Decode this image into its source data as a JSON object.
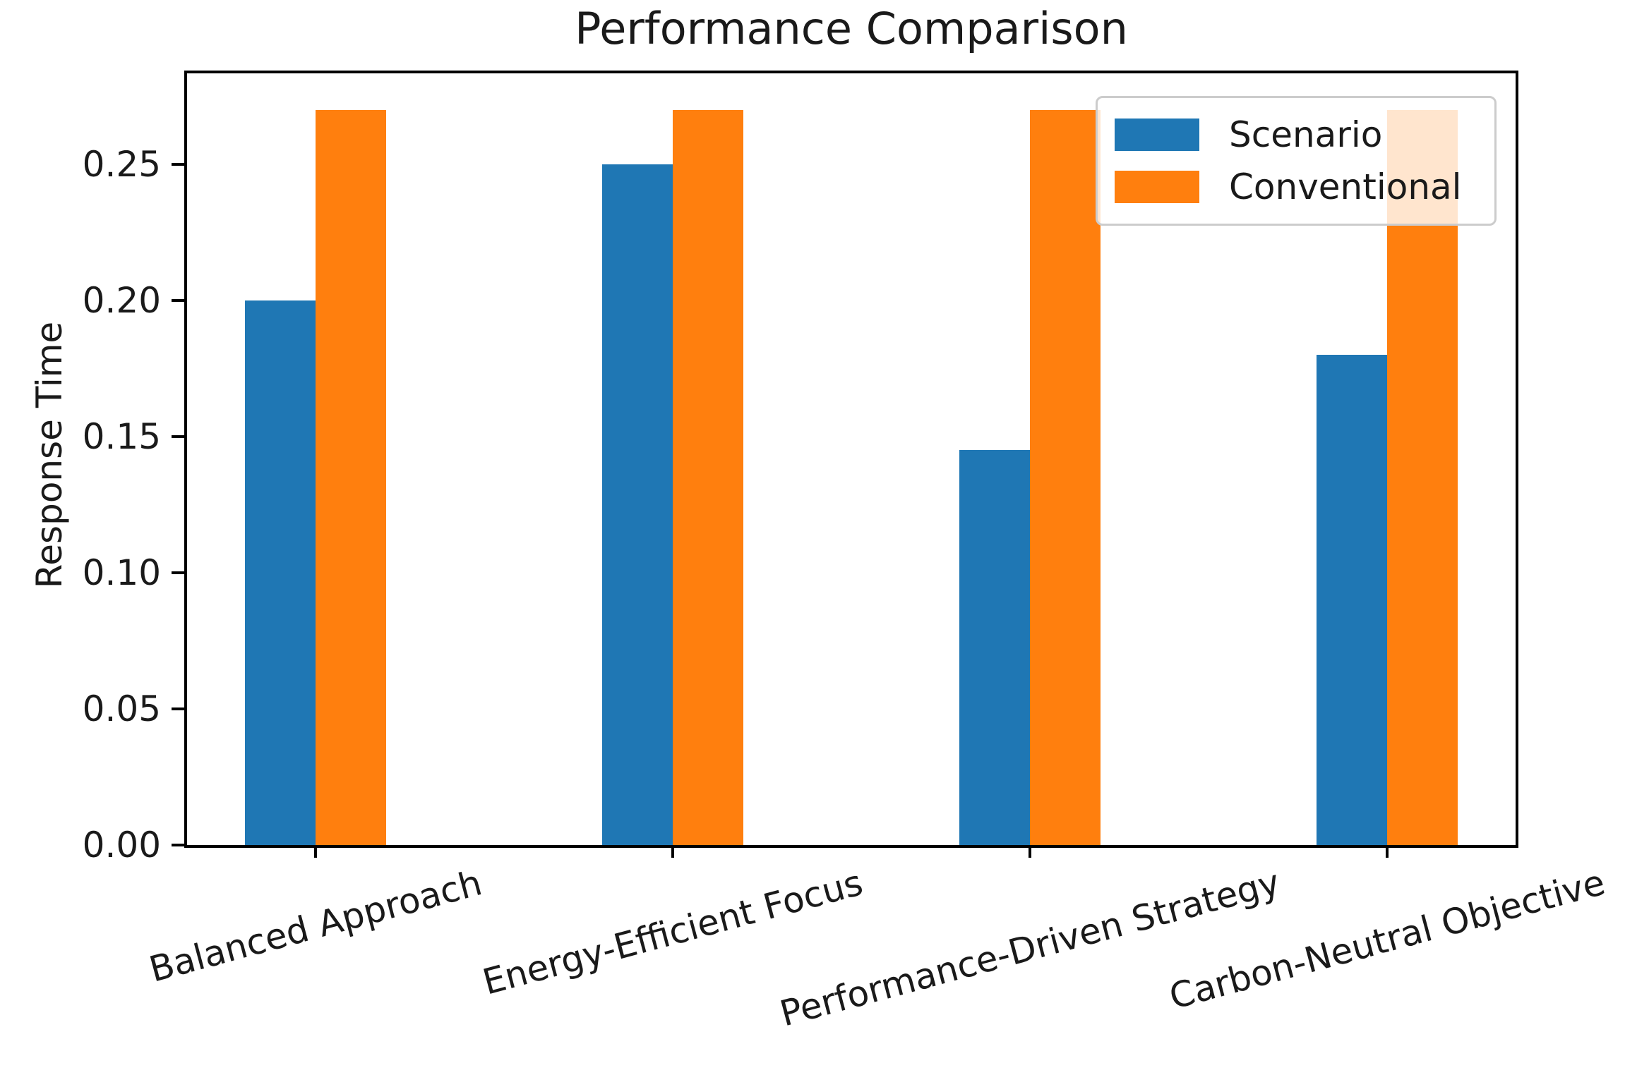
{
  "figure": {
    "title": "Performance Comparison",
    "ylabel": "Response Time"
  },
  "chart_data": {
    "type": "bar",
    "title": "Performance Comparison",
    "xlabel": "",
    "ylabel": "Response Time",
    "categories": [
      "Balanced Approach",
      "Energy-Efficient Focus",
      "Performance-Driven Strategy",
      "Carbon-Neutral Objective"
    ],
    "series": [
      {
        "name": "Scenario",
        "color": "#1f77b4",
        "values": [
          0.2,
          0.25,
          0.145,
          0.18
        ]
      },
      {
        "name": "Conventional",
        "color": "#ff7f0e",
        "values": [
          0.27,
          0.27,
          0.27,
          0.27
        ]
      }
    ],
    "ylim": [
      0,
      0.2835
    ],
    "ytick_values": [
      0.0,
      0.05,
      0.1,
      0.15,
      0.2,
      0.25
    ],
    "ytick_labels": [
      "0.00",
      "0.05",
      "0.10",
      "0.15",
      "0.20",
      "0.25"
    ],
    "xtick_rotation_deg": 15,
    "grid": false,
    "legend_position": "upper right",
    "background": "#ffffff",
    "text_color": "#1a1a1a"
  }
}
